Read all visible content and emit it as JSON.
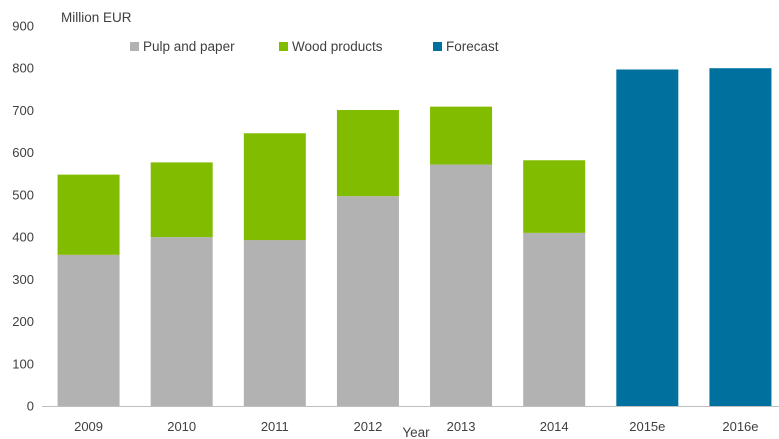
{
  "chart_data": {
    "type": "bar",
    "stacked": true,
    "ylabel": "Million EUR",
    "xlabel": "Year",
    "ylim": [
      0,
      900
    ],
    "yticks": [
      0,
      100,
      200,
      300,
      400,
      500,
      600,
      700,
      800,
      900
    ],
    "grid": false,
    "legend_position": "top",
    "categories": [
      "2009",
      "2010",
      "2011",
      "2012",
      "2013",
      "2014",
      "2015e",
      "2016e"
    ],
    "series": [
      {
        "name": "Pulp and paper",
        "color": "#b2b2b2",
        "values": [
          358,
          400,
          393,
          497,
          572,
          410,
          0,
          0
        ]
      },
      {
        "name": "Wood products",
        "color": "#82bc00",
        "values": [
          190,
          177,
          253,
          204,
          137,
          172,
          0,
          0
        ]
      },
      {
        "name": "Forecast",
        "color": "#00709f",
        "values": [
          0,
          0,
          0,
          0,
          0,
          0,
          797,
          800
        ]
      }
    ]
  }
}
